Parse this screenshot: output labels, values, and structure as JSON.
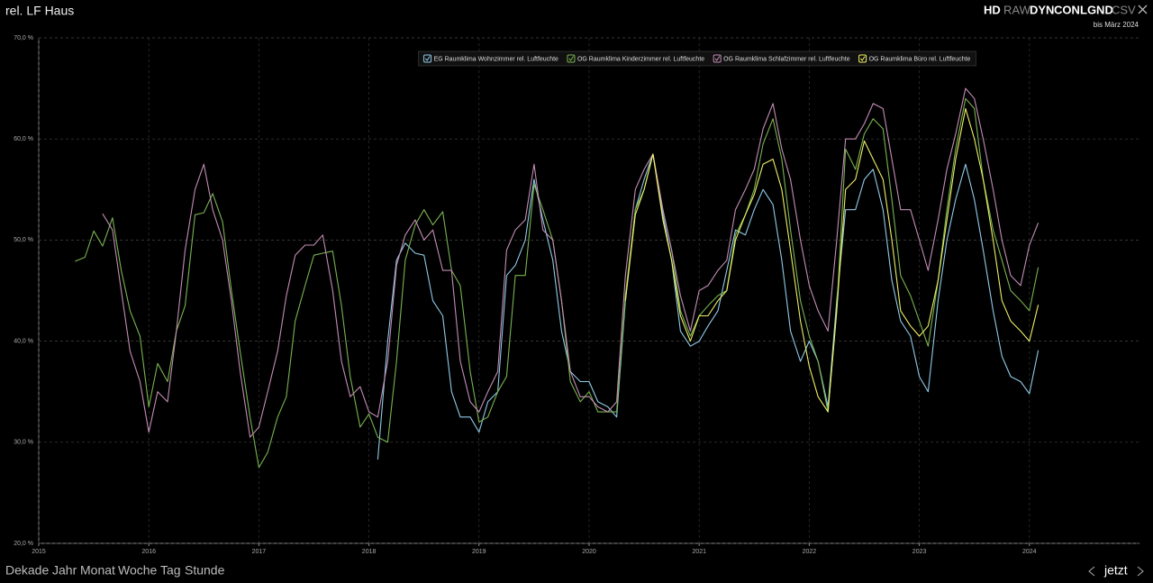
{
  "ui": {
    "modes": [
      "HD",
      "RAW",
      "DYN",
      "CON",
      "LGND",
      "CSV"
    ],
    "range_label": "bis März 2024",
    "periods": [
      "Dekade",
      "Jahr",
      "Monat",
      "Woche",
      "Tag",
      "Stunde"
    ],
    "now": "jetzt"
  },
  "chart_data": {
    "type": "line",
    "title": "rel. LF Haus",
    "xlim": [
      2015,
      2025
    ],
    "xticks": [
      2015,
      2016,
      2017,
      2018,
      2019,
      2020,
      2021,
      2022,
      2023,
      2024
    ],
    "ylim": [
      20,
      70
    ],
    "yticks": [
      {
        "value": 20,
        "label": "20,0 %"
      },
      {
        "value": 30,
        "label": "30,0 %"
      },
      {
        "value": 40,
        "label": "40,0 %"
      },
      {
        "value": 50,
        "label": "50,0 %"
      },
      {
        "value": 60,
        "label": "60,0 %"
      },
      {
        "value": 70,
        "label": "70,0 %"
      }
    ],
    "grid": true,
    "legend": "top",
    "x": [
      2015.33,
      2015.42,
      2015.5,
      2015.58,
      2015.67,
      2015.75,
      2015.83,
      2015.92,
      2016,
      2016.08,
      2016.17,
      2016.25,
      2016.33,
      2016.42,
      2016.5,
      2016.58,
      2016.67,
      2016.75,
      2016.83,
      2016.92,
      2017,
      2017.08,
      2017.17,
      2017.25,
      2017.33,
      2017.42,
      2017.5,
      2017.58,
      2017.67,
      2017.75,
      2017.83,
      2017.92,
      2018,
      2018.08,
      2018.17,
      2018.25,
      2018.33,
      2018.42,
      2018.5,
      2018.58,
      2018.67,
      2018.75,
      2018.83,
      2018.92,
      2019,
      2019.08,
      2019.17,
      2019.25,
      2019.33,
      2019.42,
      2019.5,
      2019.58,
      2019.67,
      2019.75,
      2019.83,
      2019.92,
      2020,
      2020.08,
      2020.17,
      2020.25,
      2020.33,
      2020.42,
      2020.5,
      2020.58,
      2020.67,
      2020.75,
      2020.83,
      2020.92,
      2021,
      2021.08,
      2021.17,
      2021.25,
      2021.33,
      2021.42,
      2021.5,
      2021.58,
      2021.67,
      2021.75,
      2021.83,
      2021.92,
      2022,
      2022.08,
      2022.17,
      2022.25,
      2022.33,
      2022.42,
      2022.5,
      2022.58,
      2022.67,
      2022.75,
      2022.83,
      2022.92,
      2023,
      2023.08,
      2023.17,
      2023.25,
      2023.33,
      2023.42,
      2023.5,
      2023.58,
      2023.67,
      2023.75,
      2023.83,
      2023.92,
      2024,
      2024.08
    ],
    "series": [
      {
        "name": "EG Raumklima Wohnzimmer rel. Luftfeuchte",
        "color": "#8fcbe8",
        "values": [
          null,
          null,
          null,
          null,
          null,
          null,
          null,
          null,
          null,
          null,
          null,
          null,
          null,
          null,
          null,
          null,
          null,
          null,
          null,
          null,
          null,
          null,
          null,
          null,
          null,
          null,
          null,
          null,
          null,
          null,
          null,
          null,
          null,
          28.3,
          40,
          48,
          49.7,
          48.7,
          48.5,
          44,
          42.5,
          35,
          32.5,
          32.5,
          31,
          34,
          35,
          46.5,
          47.5,
          50,
          56,
          52,
          48,
          41,
          37,
          36,
          36,
          34,
          33.5,
          32.5,
          44,
          53,
          56,
          58.5,
          52.5,
          48,
          41,
          39.5,
          40,
          41.5,
          43,
          47,
          51,
          50.5,
          53,
          55,
          53.5,
          48,
          41,
          38,
          40,
          38,
          33.5,
          44,
          53,
          53,
          56,
          57,
          53,
          46,
          42,
          40.5,
          36.5,
          35,
          44,
          50,
          54,
          57.5,
          54,
          49,
          43,
          38.5,
          36.5,
          36,
          34.8,
          39.1
        ]
      },
      {
        "name": "OG Raumklima Kinderzimmer rel. Luftfeuchte",
        "color": "#79b34f",
        "values": [
          47.9,
          48.3,
          50.9,
          49.4,
          52.2,
          47,
          43,
          40.5,
          33.5,
          37.8,
          36,
          41,
          43.5,
          52.5,
          52.7,
          54.6,
          51.8,
          45,
          39,
          32.5,
          27.5,
          29,
          32.5,
          34.5,
          42,
          45.5,
          48.5,
          48.7,
          48.9,
          43.5,
          36.5,
          31.5,
          32.8,
          30.5,
          30,
          38,
          48,
          51.5,
          53,
          51.5,
          52.8,
          47,
          45.5,
          37,
          32,
          32.5,
          35,
          36.5,
          46.5,
          46.5,
          55.5,
          53,
          50,
          44,
          36,
          34,
          35,
          33,
          33,
          33,
          44.5,
          53,
          55,
          58.5,
          53,
          49,
          43,
          40.5,
          42.5,
          43.5,
          44.5,
          45,
          50.5,
          52.5,
          55,
          59.5,
          62,
          58,
          51,
          44,
          40.5,
          38,
          33,
          43,
          59,
          57,
          60.5,
          62,
          61,
          54,
          46.5,
          44.5,
          42,
          39.5,
          46,
          53,
          59,
          64,
          63,
          56,
          51,
          48,
          45,
          44,
          43,
          47.3
        ]
      },
      {
        "name": "OG Raumklima Schlafzimmer rel. Luftfeuchte",
        "color": "#c48db5",
        "values": [
          null,
          null,
          null,
          52.6,
          51,
          45,
          39,
          36,
          31,
          35,
          34,
          41,
          49,
          55,
          57.5,
          53,
          50,
          44,
          37,
          30.5,
          31.5,
          35,
          39,
          44.5,
          48.5,
          49.5,
          49.5,
          50.5,
          45,
          38,
          34.5,
          35.5,
          33,
          32.5,
          38,
          47.5,
          50.5,
          52,
          50,
          51,
          47,
          47,
          38,
          34,
          33,
          35,
          37,
          49,
          51,
          52,
          57.5,
          51,
          50,
          44,
          37,
          34.5,
          34.5,
          33.5,
          33,
          34,
          46.5,
          55,
          57,
          58.5,
          53,
          49,
          44.5,
          41,
          45,
          45.5,
          47,
          48,
          53,
          55,
          57,
          61,
          63.5,
          59,
          56,
          50,
          45.5,
          43,
          41,
          50,
          60,
          60,
          61.5,
          63.5,
          63,
          58,
          53,
          53,
          50,
          47,
          52,
          57,
          60.5,
          65,
          64,
          60,
          55,
          50,
          46.5,
          45.5,
          49.5,
          51.7
        ]
      },
      {
        "name": "OG Raumklima Büro rel. Luftfeuchte",
        "color": "#eef064",
        "values": [
          null,
          null,
          null,
          null,
          null,
          null,
          null,
          null,
          null,
          null,
          null,
          null,
          null,
          null,
          null,
          null,
          null,
          null,
          null,
          null,
          null,
          null,
          null,
          null,
          null,
          null,
          null,
          null,
          null,
          null,
          null,
          null,
          null,
          null,
          null,
          null,
          null,
          null,
          null,
          null,
          null,
          null,
          null,
          null,
          null,
          null,
          null,
          null,
          null,
          null,
          null,
          null,
          null,
          null,
          null,
          null,
          null,
          null,
          null,
          null,
          44,
          52.5,
          55,
          58.5,
          52,
          48,
          42.5,
          40,
          42.5,
          42.5,
          44,
          45,
          50,
          52.5,
          54.5,
          57.5,
          58,
          55,
          49,
          42,
          37.5,
          34.5,
          33,
          43,
          55,
          56,
          59.8,
          58,
          56,
          50,
          43,
          41.5,
          40.5,
          41.5,
          46,
          52,
          58,
          63,
          60,
          56,
          50,
          44,
          42,
          41,
          40,
          43.6
        ]
      }
    ]
  }
}
